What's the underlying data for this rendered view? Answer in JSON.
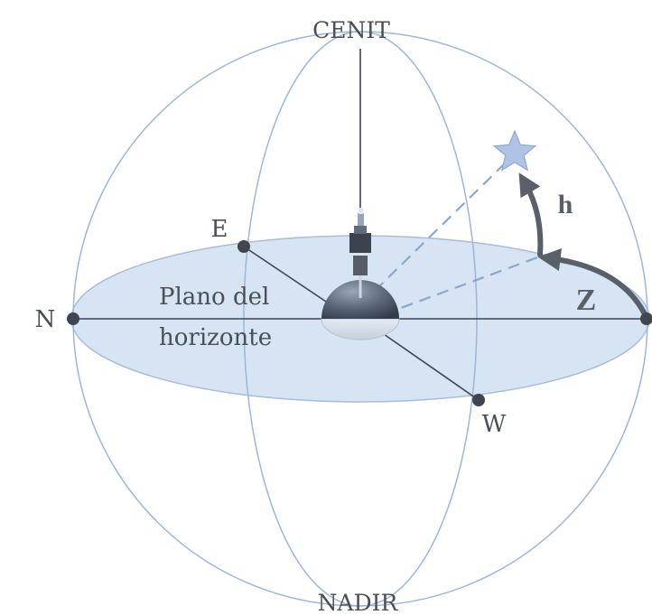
{
  "labels": {
    "zenith": "CENIT",
    "nadir": "NADIR",
    "north": "N",
    "east": "E",
    "west": "W",
    "plane_line1": "Plano del",
    "plane_line2": "horizonte",
    "altitude": "h",
    "azimuth": "Z"
  },
  "colors": {
    "sphere_stroke": "#9fb6d6",
    "horizon_fill": "#d6e4f3",
    "horizon_stroke": "#a9bcd8",
    "axis_line": "#3e4450",
    "dashed_line": "#8ea7c8",
    "arrow": "#5a6069",
    "star_fill": "#aec3e6",
    "point_fill": "#3f4551",
    "observer_dark": "#4c5566",
    "observer_light": "#d2dbe7"
  },
  "icons": {
    "star": "star-icon",
    "observer": "telescope-icon"
  }
}
